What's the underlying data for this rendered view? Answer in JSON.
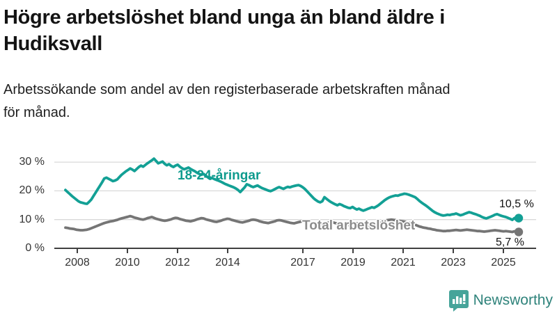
{
  "header": {
    "title": "Högre arbetslöshet bland unga än bland äldre i\nHudiksvall",
    "subtitle": "Arbetssökande som andel av den registerbaserade arbetskraften månad\nför månad."
  },
  "footer": {
    "brand_name": "Newsworthy",
    "brand_icon": "bar-chart-speech-bubble-icon",
    "icon_color": "#46a49a",
    "text_color": "#2f837b"
  },
  "chart_data": {
    "type": "line",
    "unit": "%",
    "frequency": "monthly",
    "x_start": "2008-01",
    "x_end": "2025-07",
    "grid": true,
    "ylim": [
      0,
      33
    ],
    "y_ticks": [
      0,
      10,
      20,
      30
    ],
    "y_tick_labels": [
      "0 %",
      "10 %",
      "20 %",
      "30 %"
    ],
    "x_tick_years": [
      2008,
      2010,
      2012,
      2014,
      2017,
      2019,
      2021,
      2023,
      2025
    ],
    "x_tick_labels": [
      "2008",
      "2010",
      "2012",
      "2014",
      "2017",
      "2019",
      "2021",
      "2023",
      "2025"
    ],
    "colors": {
      "youth": "#13a095",
      "total": "#757575",
      "grid": "#d9d9d9",
      "axis": "#3f3f3f"
    },
    "series": [
      {
        "name": "youth-18-24",
        "label": "18-24-åringar",
        "color": "#13a095",
        "end_label": "10,5 %",
        "end_value": 10.5,
        "values": [
          20.3,
          19.6,
          18.9,
          18.2,
          17.6,
          17.0,
          16.4,
          16.0,
          15.8,
          15.6,
          15.5,
          16.2,
          17.0,
          18.2,
          19.4,
          20.6,
          21.8,
          23.0,
          24.3,
          24.6,
          24.2,
          23.8,
          23.4,
          23.6,
          24.0,
          24.8,
          25.6,
          26.2,
          26.8,
          27.3,
          27.8,
          27.4,
          26.9,
          27.6,
          28.3,
          28.8,
          28.4,
          29.0,
          29.6,
          30.1,
          30.6,
          31.2,
          30.4,
          29.6,
          29.9,
          30.2,
          29.4,
          28.9,
          29.3,
          28.7,
          28.3,
          28.8,
          29.1,
          28.4,
          27.9,
          27.5,
          27.8,
          28.1,
          27.6,
          27.2,
          26.8,
          26.3,
          25.9,
          25.6,
          25.9,
          25.3,
          24.7,
          24.2,
          24.5,
          24.1,
          23.8,
          23.5,
          23.2,
          22.8,
          22.4,
          22.1,
          21.8,
          21.5,
          21.2,
          20.8,
          20.3,
          19.6,
          20.4,
          21.2,
          22.3,
          22.0,
          21.6,
          21.3,
          21.6,
          21.9,
          21.4,
          21.0,
          20.7,
          20.4,
          20.1,
          19.9,
          20.2,
          20.6,
          21.0,
          21.3,
          21.0,
          20.7,
          21.1,
          21.4,
          21.2,
          21.5,
          21.7,
          21.9,
          22.0,
          21.7,
          21.2,
          20.6,
          19.8,
          19.0,
          18.2,
          17.4,
          16.8,
          16.3,
          16.0,
          16.4,
          17.8,
          17.2,
          16.6,
          16.1,
          15.7,
          15.3,
          15.0,
          15.4,
          15.1,
          14.7,
          14.4,
          14.1,
          14.0,
          14.4,
          13.9,
          13.5,
          13.8,
          13.4,
          13.1,
          13.4,
          13.7,
          14.0,
          14.3,
          14.1,
          14.5,
          15.0,
          15.6,
          16.2,
          16.8,
          17.3,
          17.7,
          18.0,
          18.2,
          18.4,
          18.3,
          18.6,
          18.8,
          19.0,
          18.9,
          18.7,
          18.4,
          18.1,
          17.8,
          17.2,
          16.5,
          15.9,
          15.4,
          14.9,
          14.3,
          13.7,
          13.1,
          12.6,
          12.2,
          11.9,
          11.6,
          11.4,
          11.5,
          11.7,
          11.6,
          11.8,
          11.9,
          12.1,
          11.8,
          11.5,
          11.7,
          12.0,
          12.3,
          12.6,
          12.4,
          12.1,
          11.9,
          11.6,
          11.3,
          10.9,
          10.6,
          10.4,
          10.7,
          11.0,
          11.3,
          11.7,
          11.9,
          11.6,
          11.3,
          11.1,
          10.9,
          10.6,
          10.3,
          9.9,
          10.5,
          9.9,
          10.5
        ]
      },
      {
        "name": "total",
        "label": "Total arbetslöshet",
        "color": "#757575",
        "label_color": "#8c8c8c",
        "end_label": "5,7 %",
        "end_value": 5.7,
        "values": [
          7.2,
          7.1,
          6.9,
          6.8,
          6.7,
          6.5,
          6.4,
          6.3,
          6.3,
          6.4,
          6.5,
          6.7,
          7.0,
          7.3,
          7.6,
          7.9,
          8.2,
          8.5,
          8.8,
          9.0,
          9.2,
          9.4,
          9.5,
          9.7,
          9.9,
          10.2,
          10.4,
          10.6,
          10.8,
          11.0,
          11.2,
          11.0,
          10.7,
          10.5,
          10.3,
          10.1,
          10.0,
          10.2,
          10.5,
          10.7,
          10.9,
          10.6,
          10.3,
          10.1,
          9.9,
          9.7,
          9.6,
          9.7,
          9.9,
          10.1,
          10.4,
          10.6,
          10.5,
          10.2,
          10.0,
          9.8,
          9.6,
          9.5,
          9.4,
          9.6,
          9.8,
          10.1,
          10.3,
          10.5,
          10.4,
          10.1,
          9.9,
          9.7,
          9.5,
          9.3,
          9.2,
          9.4,
          9.6,
          9.9,
          10.1,
          10.3,
          10.2,
          9.9,
          9.7,
          9.5,
          9.3,
          9.1,
          9.0,
          9.2,
          9.4,
          9.6,
          9.9,
          10.0,
          9.9,
          9.7,
          9.4,
          9.2,
          9.0,
          8.9,
          8.8,
          9.0,
          9.2,
          9.4,
          9.7,
          9.8,
          9.7,
          9.5,
          9.3,
          9.1,
          8.9,
          8.8,
          8.7,
          8.9,
          9.1,
          9.3,
          9.5,
          9.6,
          9.4,
          9.2,
          9.0,
          8.8,
          8.6,
          8.4,
          8.3,
          8.5,
          8.6,
          8.8,
          9.0,
          9.1,
          9.0,
          8.8,
          8.6,
          8.4,
          8.2,
          8.0,
          7.9,
          8.1,
          8.2,
          8.4,
          8.6,
          8.7,
          8.6,
          8.4,
          8.3,
          8.2,
          8.1,
          8.0,
          8.0,
          8.2,
          8.4,
          8.6,
          8.9,
          9.3,
          9.6,
          9.8,
          9.9,
          10.0,
          9.9,
          9.8,
          9.6,
          9.5,
          9.4,
          9.3,
          9.1,
          8.9,
          8.7,
          8.5,
          8.2,
          7.9,
          7.6,
          7.4,
          7.2,
          7.1,
          6.9,
          6.8,
          6.6,
          6.5,
          6.3,
          6.2,
          6.1,
          6.0,
          6.0,
          6.1,
          6.1,
          6.2,
          6.3,
          6.4,
          6.3,
          6.2,
          6.3,
          6.4,
          6.5,
          6.4,
          6.3,
          6.2,
          6.1,
          6.0,
          6.0,
          5.9,
          5.8,
          5.9,
          6.0,
          6.1,
          6.2,
          6.3,
          6.2,
          6.1,
          6.0,
          5.9,
          6.0,
          5.9,
          5.8,
          5.7,
          5.9,
          5.8,
          5.7
        ]
      }
    ]
  }
}
